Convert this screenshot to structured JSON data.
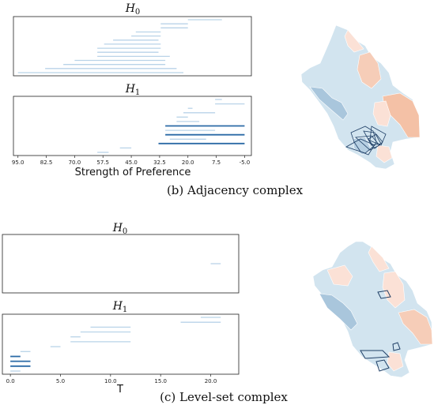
{
  "figure": {
    "caption_b": "(b) Adjacency complex",
    "caption_c": "(c) Level-set complex",
    "colors": {
      "light_bar": "#b9d3e8",
      "dark_bar": "#2b6aa6",
      "map_blue": "#d2e4ef",
      "map_blue_dark": "#a9c6dc",
      "map_salmon": "#f6cdb8",
      "map_pink": "#fbe1d6",
      "outline": "#1f3f66"
    }
  },
  "chart_data": [
    {
      "type": "barcode",
      "panel": "b",
      "title": "H",
      "title_sub": "0",
      "x_reversed": true,
      "xlim": [
        97,
        -8
      ],
      "bars": [
        {
          "start": 5,
          "end": 20,
          "tone": "light"
        },
        {
          "start": 20,
          "end": 32,
          "tone": "light"
        },
        {
          "start": 20,
          "end": 32,
          "tone": "light"
        },
        {
          "start": 32,
          "end": 43,
          "tone": "light"
        },
        {
          "start": 32,
          "end": 45,
          "tone": "light"
        },
        {
          "start": 33,
          "end": 53,
          "tone": "light"
        },
        {
          "start": 32,
          "end": 57,
          "tone": "light"
        },
        {
          "start": 32,
          "end": 60,
          "tone": "light"
        },
        {
          "start": 33,
          "end": 60,
          "tone": "light"
        },
        {
          "start": 28,
          "end": 60,
          "tone": "light"
        },
        {
          "start": 30,
          "end": 70,
          "tone": "light"
        },
        {
          "start": 30,
          "end": 75,
          "tone": "light"
        },
        {
          "start": 25,
          "end": 83,
          "tone": "light"
        },
        {
          "start": 22,
          "end": 95,
          "tone": "light"
        }
      ]
    },
    {
      "type": "barcode",
      "panel": "b",
      "title": "H",
      "title_sub": "1",
      "x_reversed": true,
      "xlim": [
        97,
        -8
      ],
      "xticks": [
        "95.0",
        "82.5",
        "70.0",
        "57.5",
        "45.0",
        "32.5",
        "20.0",
        "7.5",
        "-5.0"
      ],
      "xlabel": "Strength of Preference",
      "bars": [
        {
          "start": 5,
          "end": 8,
          "tone": "light"
        },
        {
          "start": -5,
          "end": 8,
          "tone": "light"
        },
        {
          "start": 18,
          "end": 20,
          "tone": "light"
        },
        {
          "start": 8,
          "end": 22,
          "tone": "light"
        },
        {
          "start": 20,
          "end": 25,
          "tone": "light"
        },
        {
          "start": 15,
          "end": 25,
          "tone": "light"
        },
        {
          "start": -5,
          "end": 30,
          "tone": "dark"
        },
        {
          "start": 8,
          "end": 30,
          "tone": "light"
        },
        {
          "start": -5,
          "end": 30,
          "tone": "dark"
        },
        {
          "start": 12,
          "end": 28,
          "tone": "light"
        },
        {
          "start": -5,
          "end": 33,
          "tone": "dark"
        },
        {
          "start": 45,
          "end": 50,
          "tone": "light"
        },
        {
          "start": 55,
          "end": 60,
          "tone": "light"
        }
      ]
    },
    {
      "type": "barcode",
      "panel": "c",
      "title": "H",
      "title_sub": "0",
      "xlim": [
        -0.8,
        22.8
      ],
      "bars": [
        {
          "start": 20,
          "end": 21,
          "tone": "light"
        }
      ]
    },
    {
      "type": "barcode",
      "panel": "c",
      "title": "H",
      "title_sub": "1",
      "xlim": [
        -0.8,
        22.8
      ],
      "xticks": [
        "0.0",
        "5.0",
        "10.0",
        "15.0",
        "20.0"
      ],
      "xlabel": "T",
      "bars": [
        {
          "start": 19,
          "end": 21,
          "tone": "light"
        },
        {
          "start": 17,
          "end": 21,
          "tone": "light"
        },
        {
          "start": 8,
          "end": 12,
          "tone": "light"
        },
        {
          "start": 7,
          "end": 12,
          "tone": "light"
        },
        {
          "start": 6,
          "end": 7,
          "tone": "light"
        },
        {
          "start": 6,
          "end": 12,
          "tone": "light"
        },
        {
          "start": 4,
          "end": 5,
          "tone": "light"
        },
        {
          "start": 1,
          "end": 2,
          "tone": "light"
        },
        {
          "start": 0,
          "end": 1,
          "tone": "dark"
        },
        {
          "start": 0,
          "end": 2,
          "tone": "dark"
        },
        {
          "start": 0,
          "end": 2,
          "tone": "dark"
        },
        {
          "start": 0,
          "end": 1,
          "tone": "light"
        }
      ]
    }
  ]
}
